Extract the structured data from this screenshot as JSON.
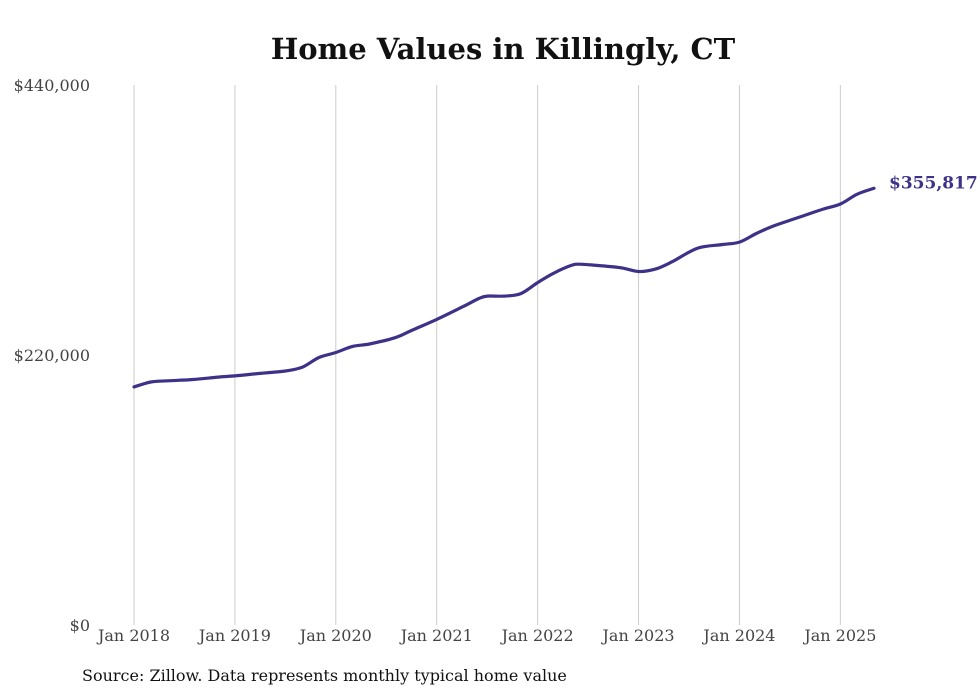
{
  "chart_data": {
    "type": "line",
    "title": "Home Values in Killingly, CT",
    "source": "Source: Zillow. Data represents monthly typical home value",
    "ylim": [
      0,
      440000
    ],
    "yticks": [
      {
        "value": 0,
        "label": "$0"
      },
      {
        "value": 220000,
        "label": "$220,000"
      },
      {
        "value": 440000,
        "label": "$440,000"
      }
    ],
    "xlim": [
      "2018-01",
      "2025-05"
    ],
    "xticks": [
      {
        "x": "2018-01",
        "label": "Jan 2018"
      },
      {
        "x": "2019-01",
        "label": "Jan 2019"
      },
      {
        "x": "2020-01",
        "label": "Jan 2020"
      },
      {
        "x": "2021-01",
        "label": "Jan 2021"
      },
      {
        "x": "2022-01",
        "label": "Jan 2022"
      },
      {
        "x": "2023-01",
        "label": "Jan 2023"
      },
      {
        "x": "2024-01",
        "label": "Jan 2024"
      },
      {
        "x": "2025-01",
        "label": "Jan 2025"
      }
    ],
    "grid": {
      "vertical": true,
      "horizontal": false
    },
    "line_color": "#3d3288",
    "end_label": "$355,817",
    "series": [
      {
        "x": [
          "2018-01",
          "2018-03",
          "2018-05",
          "2018-08",
          "2018-11",
          "2019-01",
          "2019-04",
          "2019-07",
          "2019-09",
          "2019-11",
          "2020-01",
          "2020-03",
          "2020-05",
          "2020-08",
          "2020-10",
          "2021-01",
          "2021-04",
          "2021-06",
          "2021-07",
          "2021-09",
          "2021-11",
          "2022-01",
          "2022-03",
          "2022-05",
          "2022-06",
          "2022-08",
          "2022-11",
          "2023-01",
          "2023-03",
          "2023-05",
          "2023-08",
          "2023-11",
          "2024-01",
          "2024-03",
          "2024-05",
          "2024-08",
          "2024-11",
          "2025-01",
          "2025-03",
          "2025-05"
        ],
        "values": [
          194000,
          198000,
          199000,
          200000,
          202000,
          203000,
          205000,
          207000,
          210000,
          218000,
          222000,
          227000,
          229000,
          234000,
          240000,
          249000,
          259000,
          266000,
          268000,
          268000,
          270000,
          279000,
          287000,
          293000,
          294000,
          293000,
          291000,
          288000,
          290000,
          296000,
          307000,
          310000,
          312000,
          319000,
          325000,
          332000,
          339000,
          343000,
          351000,
          355817
        ]
      }
    ]
  }
}
